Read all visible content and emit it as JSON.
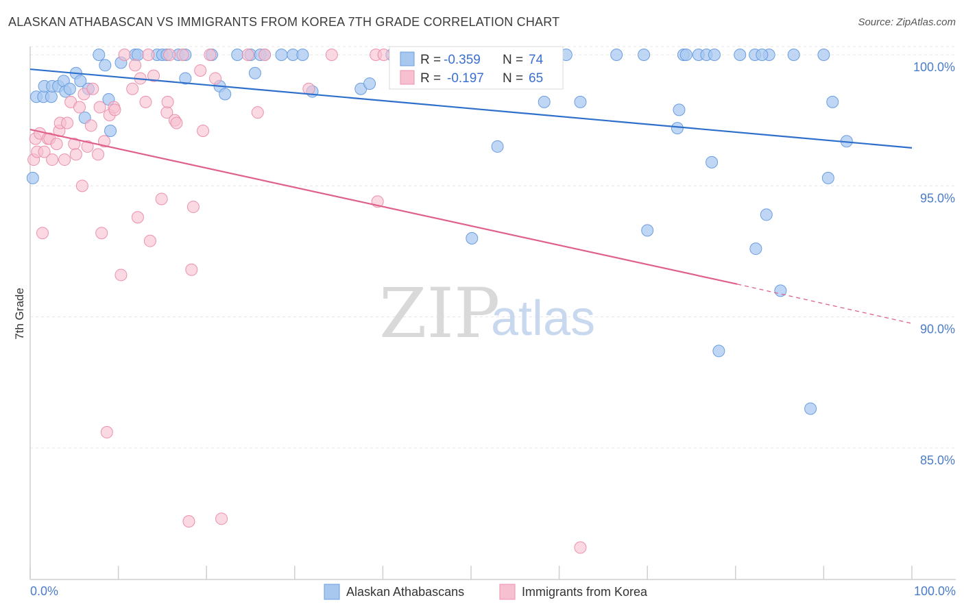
{
  "title": "ALASKAN ATHABASCAN VS IMMIGRANTS FROM KOREA 7TH GRADE CORRELATION CHART",
  "source": "Source: ZipAtlas.com",
  "watermark": {
    "zip": "ZIP",
    "atlas": "atlas"
  },
  "legend_box": {
    "rows": [
      {
        "r_label": "R =",
        "r_value": "-0.359",
        "n_label": "N =",
        "n_value": "74"
      },
      {
        "r_label": "R =",
        "r_value": "-0.197",
        "n_label": "N =",
        "n_value": "65"
      }
    ]
  },
  "bottom_legend": [
    "Alaskan Athabascans",
    "Immigrants from Korea"
  ],
  "colors": {
    "series1_fill": "#a9c8f0",
    "series1_stroke": "#6a9de0",
    "series1_line": "#2f6fcc",
    "series2_fill": "#f7c0d0",
    "series2_stroke": "#ec8fab",
    "series2_line": "#e0608b",
    "grid": "#e6e6e6",
    "tick_label": "#4a7cc7"
  },
  "chart_data": {
    "type": "scatter",
    "title": "ALASKAN ATHABASCAN VS IMMIGRANTS FROM KOREA 7TH GRADE CORRELATION CHART",
    "xlabel": "",
    "ylabel": "7th Grade",
    "xlim": [
      0,
      100
    ],
    "ylim": [
      80.4,
      101.0
    ],
    "x_tick_labels": [
      "0.0%",
      "100.0%"
    ],
    "y_ticks": [
      85,
      90,
      95,
      100
    ],
    "y_tick_labels": [
      "85.0%",
      "90.0%",
      "95.0%",
      "100.0%"
    ],
    "grid": true,
    "legend_position": "top-center",
    "series": [
      {
        "name": "Alaskan Athabascans",
        "r": -0.359,
        "n": 74,
        "trend": {
          "x": [
            0,
            100
          ],
          "y": [
            99.45,
            96.45
          ]
        },
        "points": [
          [
            0.3,
            95.3
          ],
          [
            0.7,
            98.4
          ],
          [
            1.5,
            98.4
          ],
          [
            1.6,
            98.8
          ],
          [
            2.4,
            98.4
          ],
          [
            2.5,
            98.8
          ],
          [
            3.2,
            98.8
          ],
          [
            3.8,
            99.0
          ],
          [
            4.0,
            98.6
          ],
          [
            4.5,
            98.7
          ],
          [
            5.2,
            99.3
          ],
          [
            5.7,
            99.0
          ],
          [
            6.2,
            97.6
          ],
          [
            6.6,
            98.7
          ],
          [
            7.8,
            100.0
          ],
          [
            8.5,
            99.6
          ],
          [
            8.9,
            98.3
          ],
          [
            9.1,
            97.1
          ],
          [
            10.3,
            99.7
          ],
          [
            11.9,
            100.0
          ],
          [
            12.2,
            100.0
          ],
          [
            14.4,
            100.0
          ],
          [
            15.0,
            100.0
          ],
          [
            15.5,
            100.0
          ],
          [
            16.8,
            100.0
          ],
          [
            17.6,
            100.0
          ],
          [
            17.6,
            99.1
          ],
          [
            20.6,
            100.0
          ],
          [
            21.5,
            98.8
          ],
          [
            22.1,
            98.5
          ],
          [
            23.5,
            100.0
          ],
          [
            25.0,
            100.0
          ],
          [
            25.5,
            99.3
          ],
          [
            26.1,
            100.0
          ],
          [
            26.6,
            100.0
          ],
          [
            28.5,
            100.0
          ],
          [
            29.8,
            100.0
          ],
          [
            30.9,
            100.0
          ],
          [
            32.0,
            98.6
          ],
          [
            37.5,
            98.7
          ],
          [
            38.5,
            98.9
          ],
          [
            41.0,
            100.0
          ],
          [
            53.0,
            96.5
          ],
          [
            50.1,
            93.0
          ],
          [
            55.5,
            100.0
          ],
          [
            58.0,
            100.0
          ],
          [
            58.3,
            98.2
          ],
          [
            60.8,
            100.0
          ],
          [
            62.4,
            98.2
          ],
          [
            66.5,
            100.0
          ],
          [
            69.6,
            100.0
          ],
          [
            70.0,
            93.3
          ],
          [
            73.4,
            97.2
          ],
          [
            73.6,
            97.9
          ],
          [
            74.1,
            100.0
          ],
          [
            74.4,
            100.0
          ],
          [
            75.8,
            100.0
          ],
          [
            76.7,
            100.0
          ],
          [
            77.3,
            95.9
          ],
          [
            77.6,
            100.0
          ],
          [
            78.1,
            88.7
          ],
          [
            80.5,
            100.0
          ],
          [
            82.2,
            100.0
          ],
          [
            82.3,
            92.6
          ],
          [
            83.5,
            93.9
          ],
          [
            83.8,
            100.0
          ],
          [
            85.1,
            91.0
          ],
          [
            83.0,
            100.0
          ],
          [
            86.6,
            100.0
          ],
          [
            88.5,
            86.5
          ],
          [
            90.0,
            100.0
          ],
          [
            90.5,
            95.3
          ],
          [
            91.0,
            98.2
          ],
          [
            92.6,
            96.7
          ]
        ]
      },
      {
        "name": "Immigrants from Korea",
        "r": -0.197,
        "n": 65,
        "trend": {
          "x": [
            0,
            80.2
          ],
          "y": [
            97.15,
            91.25
          ]
        },
        "trend_dashed": {
          "x": [
            80.2,
            100
          ],
          "y": [
            91.25,
            89.75
          ]
        },
        "points": [
          [
            0.4,
            96.0
          ],
          [
            0.6,
            96.8
          ],
          [
            0.8,
            96.3
          ],
          [
            1.1,
            97.0
          ],
          [
            1.4,
            93.2
          ],
          [
            1.6,
            96.3
          ],
          [
            2.0,
            96.8
          ],
          [
            2.2,
            96.8
          ],
          [
            2.5,
            96.0
          ],
          [
            3.0,
            96.6
          ],
          [
            3.3,
            97.1
          ],
          [
            3.4,
            97.4
          ],
          [
            3.9,
            96.0
          ],
          [
            4.2,
            97.4
          ],
          [
            4.6,
            98.2
          ],
          [
            5.0,
            96.6
          ],
          [
            5.2,
            96.2
          ],
          [
            5.6,
            98.0
          ],
          [
            5.9,
            95.0
          ],
          [
            6.1,
            98.5
          ],
          [
            6.5,
            96.5
          ],
          [
            6.9,
            97.3
          ],
          [
            7.1,
            98.7
          ],
          [
            7.7,
            96.2
          ],
          [
            7.9,
            98.0
          ],
          [
            8.1,
            93.2
          ],
          [
            8.4,
            96.7
          ],
          [
            8.7,
            85.6
          ],
          [
            9.0,
            97.7
          ],
          [
            9.5,
            98.0
          ],
          [
            9.6,
            97.9
          ],
          [
            10.3,
            91.6
          ],
          [
            10.7,
            100.0
          ],
          [
            11.6,
            98.7
          ],
          [
            11.9,
            99.6
          ],
          [
            12.2,
            93.8
          ],
          [
            12.5,
            99.1
          ],
          [
            13.1,
            98.2
          ],
          [
            13.4,
            100.0
          ],
          [
            13.6,
            92.9
          ],
          [
            14.0,
            99.2
          ],
          [
            14.9,
            94.5
          ],
          [
            15.5,
            97.8
          ],
          [
            15.6,
            98.2
          ],
          [
            15.8,
            100.0
          ],
          [
            16.4,
            97.5
          ],
          [
            16.6,
            97.4
          ],
          [
            17.3,
            100.0
          ],
          [
            18.0,
            82.2
          ],
          [
            18.3,
            91.8
          ],
          [
            18.5,
            94.2
          ],
          [
            19.3,
            99.4
          ],
          [
            19.6,
            97.1
          ],
          [
            20.4,
            100.0
          ],
          [
            21.0,
            99.1
          ],
          [
            21.7,
            82.3
          ],
          [
            24.7,
            100.0
          ],
          [
            25.8,
            97.8
          ],
          [
            26.6,
            100.0
          ],
          [
            31.6,
            98.7
          ],
          [
            34.2,
            100.0
          ],
          [
            39.2,
            100.0
          ],
          [
            39.4,
            94.4
          ],
          [
            62.4,
            81.2
          ],
          [
            40.1,
            100.0
          ]
        ]
      }
    ]
  }
}
